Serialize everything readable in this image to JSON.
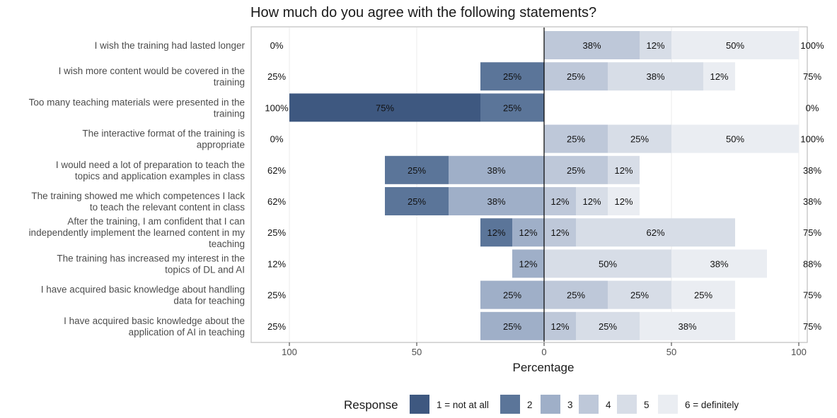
{
  "chart_data": {
    "type": "bar",
    "orientation": "horizontal",
    "stacked": "diverging",
    "title": "How much do you agree with the following statements?",
    "xlabel": "Percentage",
    "xlim": [
      -100,
      100
    ],
    "xticks": [
      -100,
      -50,
      0,
      50,
      100
    ],
    "xtick_labels": [
      "100",
      "50",
      "0",
      "50",
      "100"
    ],
    "legend": {
      "title": "Response",
      "position": "bottom",
      "items": [
        {
          "label": "1 = not at all",
          "color": "#3e5880"
        },
        {
          "label": "2",
          "color": "#5b7599"
        },
        {
          "label": "3",
          "color": "#9fafc8"
        },
        {
          "label": "4",
          "color": "#bec8d9"
        },
        {
          "label": "5",
          "color": "#d7dde7"
        },
        {
          "label": "6 = definitely",
          "color": "#eaedf2"
        }
      ]
    },
    "categories": [
      "I wish the training had lasted longer",
      "I wish more content would be covered in the\ntraining",
      "Too many teaching materials were presented in the\ntraining",
      "The interactive format of the training is\nappropriate",
      "I would need a lot of preparation to teach the\ntopics and application examples in class",
      "The training showed me which competences I lack\nto teach the relevant content in class",
      "After the training, I am confident that I can\nindependently implement the learned content in my\nteaching",
      "The training has increased my interest in the\ntopics of DL and AI",
      "I have acquired basic knowledge about handling\ndata for teaching",
      "I have acquired basic knowledge about the\napplication of AI in teaching"
    ],
    "series": [
      {
        "name": "1 = not at all",
        "values": [
          0,
          0,
          75,
          0,
          0,
          0,
          0,
          0,
          0,
          0
        ],
        "labels": [
          "",
          "",
          "75%",
          "",
          "",
          "",
          "",
          "",
          "",
          ""
        ]
      },
      {
        "name": "2",
        "values": [
          0,
          25,
          25,
          0,
          25,
          25,
          12.5,
          0,
          0,
          0
        ],
        "labels": [
          "",
          "25%",
          "25%",
          "",
          "25%",
          "25%",
          "12%",
          "",
          "",
          ""
        ]
      },
      {
        "name": "3",
        "values": [
          0,
          0,
          0,
          0,
          37.5,
          37.5,
          12.5,
          12.5,
          25,
          25
        ],
        "labels": [
          "",
          "",
          "",
          "",
          "38%",
          "38%",
          "12%",
          "12%",
          "25%",
          "25%"
        ]
      },
      {
        "name": "4",
        "values": [
          37.5,
          25,
          0,
          25,
          25,
          12.5,
          12.5,
          0,
          25,
          12.5
        ],
        "labels": [
          "38%",
          "25%",
          "",
          "25%",
          "25%",
          "12%",
          "12%",
          "",
          "25%",
          "12%"
        ]
      },
      {
        "name": "5",
        "values": [
          12.5,
          37.5,
          0,
          25,
          12.5,
          12.5,
          62.5,
          50,
          25,
          25
        ],
        "labels": [
          "12%",
          "38%",
          "",
          "25%",
          "12%",
          "12%",
          "62%",
          "50%",
          "25%",
          "25%"
        ]
      },
      {
        "name": "6 = definitely",
        "values": [
          50,
          12.5,
          0,
          50,
          0,
          12.5,
          0,
          37.5,
          25,
          37.5
        ],
        "labels": [
          "50%",
          "12%",
          "",
          "50%",
          "",
          "12%",
          "",
          "38%",
          "25%",
          "38%"
        ]
      }
    ],
    "totals_left": [
      "0%",
      "25%",
      "100%",
      "0%",
      "62%",
      "62%",
      "25%",
      "12%",
      "25%",
      "25%"
    ],
    "totals_right": [
      "100%",
      "75%",
      "0%",
      "100%",
      "38%",
      "38%",
      "75%",
      "88%",
      "75%",
      "75%"
    ]
  }
}
